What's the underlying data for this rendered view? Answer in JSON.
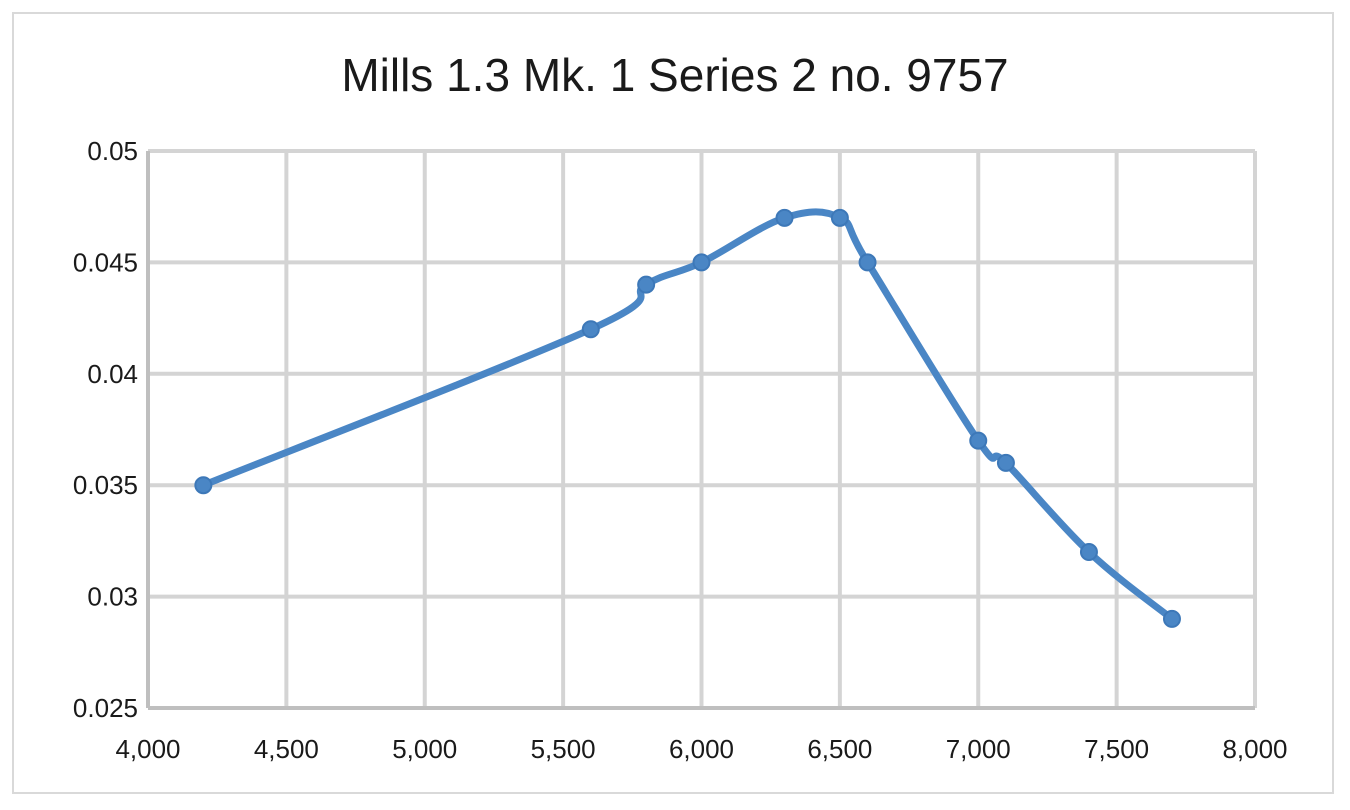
{
  "chart_data": {
    "type": "line",
    "title": "Mills 1.3 Mk. 1 Series 2 no. 9757",
    "xlabel": "",
    "ylabel": "",
    "xlim": [
      4000,
      8000
    ],
    "ylim": [
      0.025,
      0.05
    ],
    "x_ticks": [
      "4,000",
      "4,500",
      "5,000",
      "5,500",
      "6,000",
      "6,500",
      "7,000",
      "7,500",
      "8,000"
    ],
    "y_ticks": [
      "0.05",
      "0.045",
      "0.04",
      "0.035",
      "0.03",
      "0.025"
    ],
    "grid": true,
    "legend": "none",
    "series": [
      {
        "color": "#4a86c5",
        "x": [
          4200,
          5600,
          5800,
          6000,
          6300,
          6500,
          6600,
          7000,
          7100,
          7400,
          7700
        ],
        "y": [
          0.035,
          0.042,
          0.044,
          0.045,
          0.047,
          0.047,
          0.045,
          0.037,
          0.036,
          0.032,
          0.029
        ]
      }
    ]
  }
}
